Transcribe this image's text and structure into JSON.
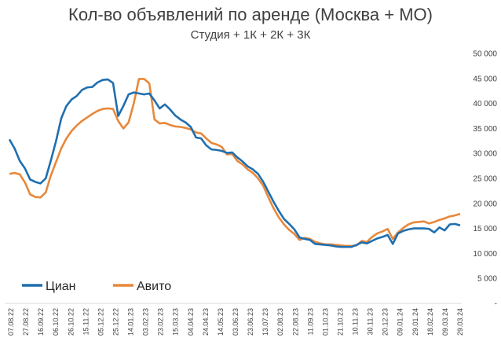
{
  "chart_data": {
    "type": "line",
    "title": "Кол-во объявлений по аренде (Москва + МО)",
    "subtitle": "Студия + 1К + 2К + 3К",
    "ylim": [
      0,
      50000
    ],
    "y_ticks": [
      "-",
      "5 000",
      "10 000",
      "15 000",
      "20 000",
      "25 000",
      "30 000",
      "35 000",
      "40 000",
      "45 000",
      "50 000"
    ],
    "y_axis_position": "right",
    "grid": false,
    "legend_position": "bottom-left",
    "x_ticks": [
      "07.08.22",
      "27.08.22",
      "16.09.22",
      "06.10.22",
      "26.10.22",
      "15.11.22",
      "05.12.22",
      "25.12.22",
      "14.01.23",
      "03.02.23",
      "23.02.23",
      "15.03.23",
      "04.04.23",
      "24.04.23",
      "14.05.23",
      "03.06.23",
      "23.06.23",
      "13.07.23",
      "02.08.23",
      "22.08.23",
      "11.09.23",
      "01.10.23",
      "21.10.23",
      "10.11.23",
      "30.11.23",
      "20.12.23",
      "09.01.24",
      "29.01.24",
      "18.02.24",
      "09.03.24",
      "29.03.24"
    ],
    "series": [
      {
        "name": "Циан",
        "color": "#1f6fb0",
        "values": [
          32800,
          31000,
          28500,
          27000,
          24800,
          24300,
          24000,
          25000,
          28600,
          32500,
          37000,
          39500,
          40800,
          41500,
          42700,
          43200,
          43300,
          44200,
          44700,
          44800,
          44100,
          37500,
          39500,
          41800,
          42200,
          42000,
          41800,
          42000,
          40600,
          39000,
          39800,
          38800,
          37600,
          36800,
          36200,
          35300,
          33200,
          33000,
          31600,
          30800,
          30700,
          30500,
          30100,
          30200,
          29200,
          28400,
          27400,
          26800,
          25900,
          24300,
          22300,
          20300,
          18500,
          16900,
          15900,
          14800,
          13200,
          12900,
          12700,
          11900,
          11800,
          11700,
          11600,
          11400,
          11300,
          11300,
          11300,
          11700,
          12200,
          12000,
          12500,
          13000,
          13300,
          13700,
          11900,
          14000,
          14500,
          14800,
          15000,
          15000,
          15000,
          14900,
          14200,
          15200,
          14600,
          15800,
          15900,
          15600
        ]
      },
      {
        "name": "Авито",
        "color": "#e8883a",
        "values": [
          25900,
          26100,
          25800,
          24200,
          21800,
          21300,
          21200,
          22200,
          25600,
          28300,
          31000,
          33000,
          34500,
          35600,
          36500,
          37200,
          37900,
          38500,
          38900,
          39000,
          38900,
          36500,
          35000,
          36200,
          40000,
          44900,
          44900,
          44000,
          36800,
          36000,
          36100,
          35700,
          35400,
          35300,
          35100,
          34800,
          34200,
          34000,
          33000,
          32100,
          31800,
          31300,
          29800,
          29900,
          28500,
          27800,
          26800,
          26100,
          25000,
          23500,
          21200,
          19000,
          17200,
          15800,
          14700,
          13900,
          12700,
          13100,
          12900,
          12300,
          12000,
          11800,
          11800,
          11700,
          11600,
          11500,
          11500,
          11600,
          12500,
          12300,
          13300,
          14000,
          14400,
          14900,
          12900,
          14200,
          15100,
          15800,
          16200,
          16300,
          16400,
          16000,
          16300,
          16700,
          17000,
          17400,
          17600,
          17900
        ]
      }
    ]
  }
}
